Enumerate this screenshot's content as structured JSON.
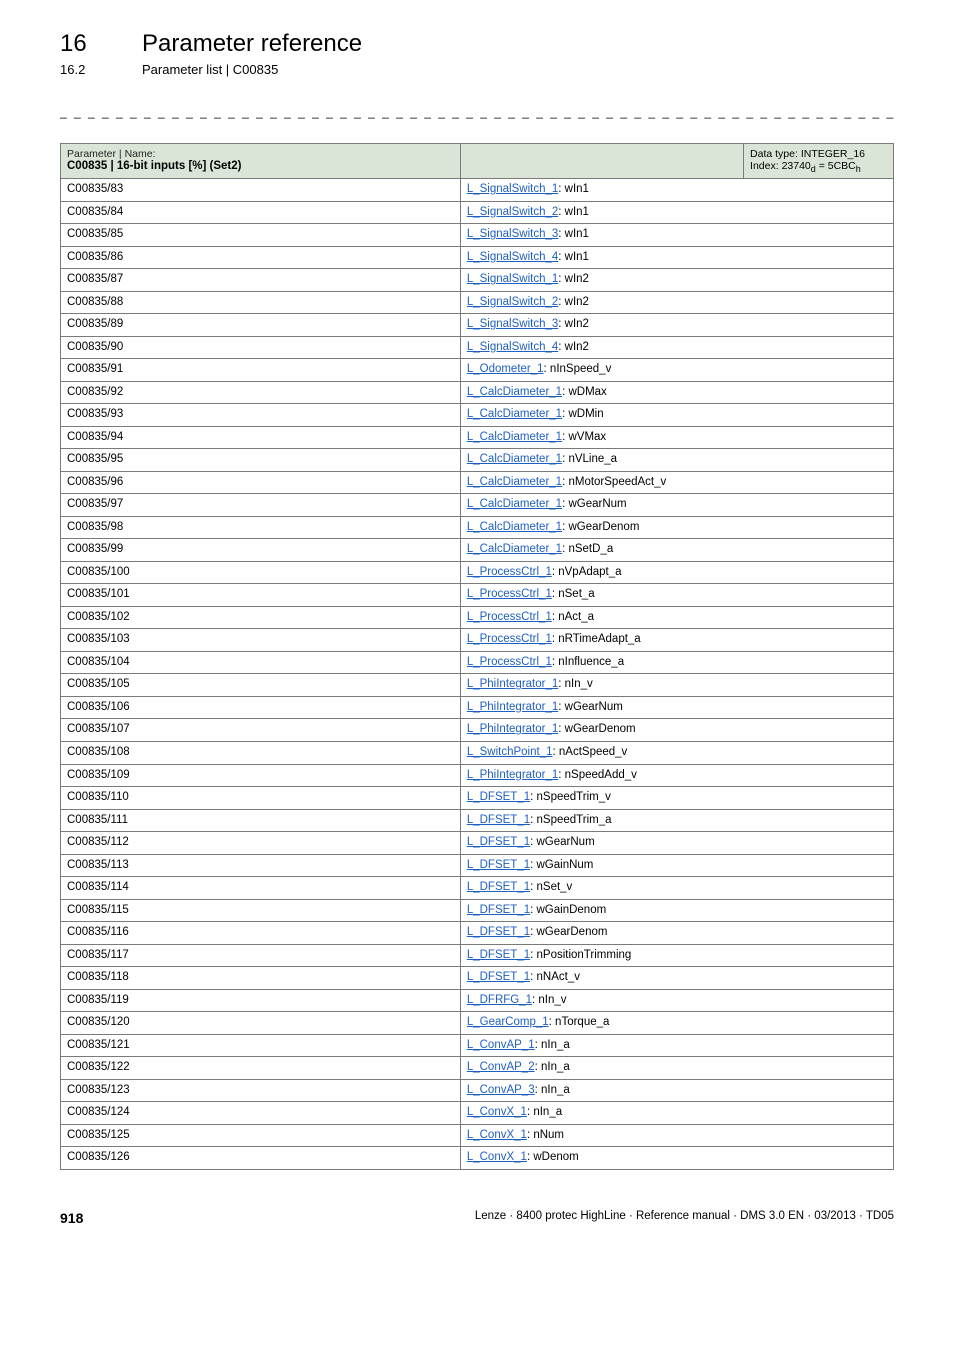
{
  "header": {
    "chapter_num": "16",
    "chapter_title": "Parameter reference",
    "sub_num": "16.2",
    "sub_title": "Parameter list | C00835"
  },
  "table": {
    "header": {
      "label": "Parameter | Name:",
      "name": "C00835 | 16-bit inputs [%] (Set2)",
      "dtype": "Data type: INTEGER_16",
      "index_prefix": "Index: 23740",
      "index_mid": " = 5CBC"
    },
    "rows": [
      {
        "code": "C00835/83",
        "link": "L_SignalSwitch_1",
        "suffix": ": wIn1"
      },
      {
        "code": "C00835/84",
        "link": "L_SignalSwitch_2",
        "suffix": ": wIn1"
      },
      {
        "code": "C00835/85",
        "link": "L_SignalSwitch_3",
        "suffix": ": wIn1"
      },
      {
        "code": "C00835/86",
        "link": "L_SignalSwitch_4",
        "suffix": ": wIn1"
      },
      {
        "code": "C00835/87",
        "link": "L_SignalSwitch_1",
        "suffix": ": wIn2"
      },
      {
        "code": "C00835/88",
        "link": "L_SignalSwitch_2",
        "suffix": ": wIn2"
      },
      {
        "code": "C00835/89",
        "link": "L_SignalSwitch_3",
        "suffix": ": wIn2"
      },
      {
        "code": "C00835/90",
        "link": "L_SignalSwitch_4",
        "suffix": ": wIn2"
      },
      {
        "code": "C00835/91",
        "link": "L_Odometer_1",
        "suffix": ": nInSpeed_v"
      },
      {
        "code": "C00835/92",
        "link": "L_CalcDiameter_1",
        "suffix": ": wDMax"
      },
      {
        "code": "C00835/93",
        "link": "L_CalcDiameter_1",
        "suffix": ": wDMin"
      },
      {
        "code": "C00835/94",
        "link": "L_CalcDiameter_1",
        "suffix": ": wVMax"
      },
      {
        "code": "C00835/95",
        "link": "L_CalcDiameter_1",
        "suffix": ": nVLine_a"
      },
      {
        "code": "C00835/96",
        "link": "L_CalcDiameter_1",
        "suffix": ": nMotorSpeedAct_v"
      },
      {
        "code": "C00835/97",
        "link": "L_CalcDiameter_1",
        "suffix": ": wGearNum"
      },
      {
        "code": "C00835/98",
        "link": "L_CalcDiameter_1",
        "suffix": ": wGearDenom"
      },
      {
        "code": "C00835/99",
        "link": "L_CalcDiameter_1",
        "suffix": ": nSetD_a"
      },
      {
        "code": "C00835/100",
        "link": "L_ProcessCtrl_1",
        "suffix": ": nVpAdapt_a"
      },
      {
        "code": "C00835/101",
        "link": "L_ProcessCtrl_1",
        "suffix": ": nSet_a"
      },
      {
        "code": "C00835/102",
        "link": "L_ProcessCtrl_1",
        "suffix": ": nAct_a"
      },
      {
        "code": "C00835/103",
        "link": "L_ProcessCtrl_1",
        "suffix": ": nRTimeAdapt_a"
      },
      {
        "code": "C00835/104",
        "link": "L_ProcessCtrl_1",
        "suffix": ": nInfluence_a"
      },
      {
        "code": "C00835/105",
        "link": "L_PhiIntegrator_1",
        "suffix": ": nIn_v"
      },
      {
        "code": "C00835/106",
        "link": "L_PhiIntegrator_1",
        "suffix": ": wGearNum"
      },
      {
        "code": "C00835/107",
        "link": "L_PhiIntegrator_1",
        "suffix": ": wGearDenom"
      },
      {
        "code": "C00835/108",
        "link": "L_SwitchPoint_1",
        "suffix": ": nActSpeed_v"
      },
      {
        "code": "C00835/109",
        "link": "L_PhiIntegrator_1",
        "suffix": ": nSpeedAdd_v"
      },
      {
        "code": "C00835/110",
        "link": "L_DFSET_1",
        "suffix": ": nSpeedTrim_v"
      },
      {
        "code": "C00835/111",
        "link": "L_DFSET_1",
        "suffix": ": nSpeedTrim_a"
      },
      {
        "code": "C00835/112",
        "link": "L_DFSET_1",
        "suffix": ": wGearNum"
      },
      {
        "code": "C00835/113",
        "link": "L_DFSET_1",
        "suffix": ": wGainNum"
      },
      {
        "code": "C00835/114",
        "link": "L_DFSET_1",
        "suffix": ": nSet_v"
      },
      {
        "code": "C00835/115",
        "link": "L_DFSET_1",
        "suffix": ": wGainDenom"
      },
      {
        "code": "C00835/116",
        "link": "L_DFSET_1",
        "suffix": ": wGearDenom"
      },
      {
        "code": "C00835/117",
        "link": "L_DFSET_1",
        "suffix": ": nPositionTrimming"
      },
      {
        "code": "C00835/118",
        "link": "L_DFSET_1",
        "suffix": ": nNAct_v"
      },
      {
        "code": "C00835/119",
        "link": "L_DFRFG_1",
        "suffix": ": nIn_v"
      },
      {
        "code": "C00835/120",
        "link": "L_GearComp_1",
        "suffix": ": nTorque_a"
      },
      {
        "code": "C00835/121",
        "link": "L_ConvAP_1",
        "suffix": ": nIn_a"
      },
      {
        "code": "C00835/122",
        "link": "L_ConvAP_2",
        "suffix": ": nIn_a"
      },
      {
        "code": "C00835/123",
        "link": "L_ConvAP_3",
        "suffix": ": nIn_a"
      },
      {
        "code": "C00835/124",
        "link": "L_ConvX_1",
        "suffix": ": nIn_a"
      },
      {
        "code": "C00835/125",
        "link": "L_ConvX_1",
        "suffix": ": nNum"
      },
      {
        "code": "C00835/126",
        "link": "L_ConvX_1",
        "suffix": ": wDenom"
      }
    ]
  },
  "footer": {
    "page": "918",
    "info": "Lenze · 8400 protec HighLine · Reference manual · DMS 3.0 EN · 03/2013 · TD05"
  }
}
